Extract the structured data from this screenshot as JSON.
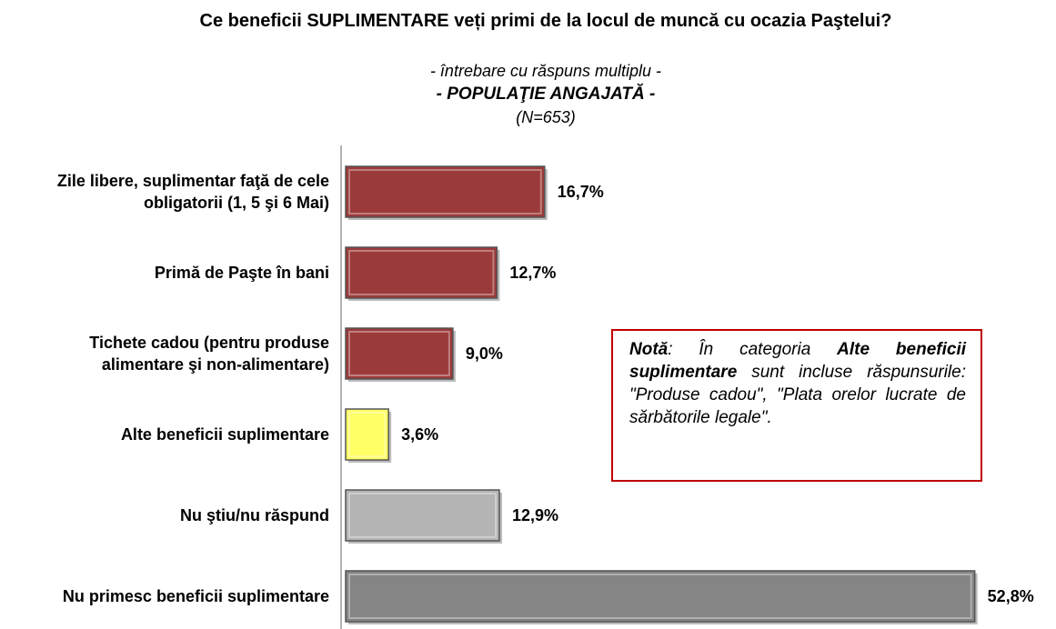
{
  "chart_data": {
    "type": "bar",
    "orientation": "horizontal",
    "title": "Ce beneficii SUPLIMENTARE veți primi de la locul de muncă cu ocazia Paştelui?",
    "subtitle": "- întrebare cu răspuns multiplu -",
    "population": "- POPULAŢIE ANGAJATĂ -",
    "sample": "(N=653)",
    "categories": [
      "Zile libere, suplimentar faţă de cele obligatorii (1, 5 şi 6 Mai)",
      "Primă de Paşte în bani",
      "Tichete cadou (pentru produse alimentare şi non-alimentare)",
      "Alte beneficii suplimentare",
      "Nu ştiu/nu răspund",
      "Nu primesc beneficii suplimentare"
    ],
    "values": [
      16.7,
      12.7,
      9.0,
      3.6,
      12.9,
      52.8
    ],
    "value_labels": [
      "16,7%",
      "12,7%",
      "9,0%",
      "3,6%",
      "12,9%",
      "52,8%"
    ],
    "colors": [
      "#9b3a3a",
      "#9b3a3a",
      "#9b3a3a",
      "#ffff66",
      "#b4b4b4",
      "#858585"
    ],
    "note": [
      {
        "text": "Notă",
        "bold": true
      },
      {
        "text": ": În categoria ",
        "bold": false
      },
      {
        "text": "Alte beneficii suplimentare",
        "bold": true
      },
      {
        "text": " sunt incluse răspunsurile: \"Produse cadou\", \"Plata orelor lucrate de sărbătorile legale\".",
        "bold": false
      }
    ]
  }
}
